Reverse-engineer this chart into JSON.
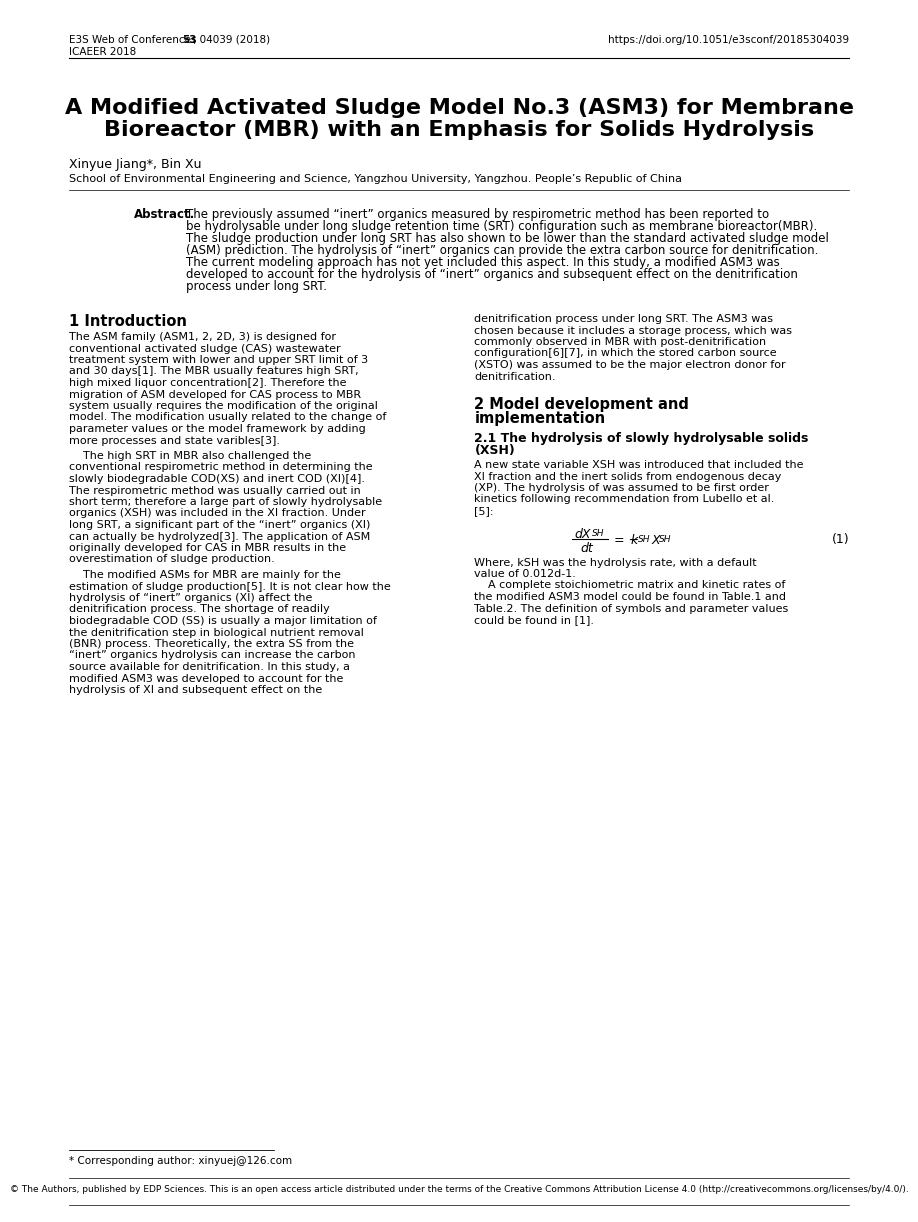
{
  "header_left_line1": "E3S Web of Conferences ",
  "header_left_bold": "53",
  "header_left_line1_rest": ", 04039 (2018)",
  "header_left_line2": "ICAEER 2018",
  "header_right": "https://doi.org/10.1051/e3sconf/20185304039",
  "title_line1": "A Modified Activated Sludge Model No.3 (ASM3) for Membrane",
  "title_line2": "Bioreactor (MBR) with an Emphasis for Solids Hydrolysis",
  "authors": "Xinyue Jiang*, Bin Xu",
  "affiliation": "School of Environmental Engineering and Science, Yangzhou University, Yangzhou. People’s Republic of China",
  "abstract_label": "Abstract.",
  "abstract_lines": [
    "The previously assumed “inert” organics measured by respirometric method has been reported to",
    "be hydrolysable under long sludge retention time (SRT) configuration such as membrane bioreactor(MBR).",
    "The sludge production under long SRT has also shown to be lower than the standard activated sludge model",
    "(ASM) prediction. The hydrolysis of “inert” organics can provide the extra carbon source for denitrification.",
    "The current modeling approach has not yet included this aspect. In this study, a modified ASM3 was",
    "developed to account for the hydrolysis of “inert” organics and subsequent effect on the denitrification",
    "process under long SRT."
  ],
  "col1_intro_title": "1 Introduction",
  "col1_p1_lines": [
    "The ASM family (ASM1, 2, 2D, 3) is designed for",
    "conventional activated sludge (CAS) wastewater",
    "treatment system with lower and upper SRT limit of 3",
    "and 30 days[1]. The MBR usually features high SRT,",
    "high mixed liquor concentration[2]. Therefore the",
    "migration of ASM developed for CAS process to MBR",
    "system usually requires the modification of the original",
    "model. The modification usually related to the change of",
    "parameter values or the model framework by adding",
    "more processes and state varibles[3]."
  ],
  "col1_p2_lines": [
    "    The high SRT in MBR also challenged the",
    "conventional respirometric method in determining the",
    "slowly biodegradable COD(XS) and inert COD (XI)[4].",
    "The respirometric method was usually carried out in",
    "short term; therefore a large part of slowly hydrolysable",
    "organics (XSH) was included in the XI fraction. Under",
    "long SRT, a significant part of the “inert” organics (XI)",
    "can actually be hydrolyzed[3]. The application of ASM",
    "originally developed for CAS in MBR results in the",
    "overestimation of sludge production."
  ],
  "col1_p3_lines": [
    "    The modified ASMs for MBR are mainly for the",
    "estimation of sludge production[5]. It is not clear how the",
    "hydrolysis of “inert” organics (XI) affect the",
    "denitrification process. The shortage of readily",
    "biodegradable COD (SS) is usually a major limitation of",
    "the denitrification step in biological nutrient removal",
    "(BNR) process. Theoretically, the extra SS from the",
    "“inert” organics hydrolysis can increase the carbon",
    "source available for denitrification. In this study, a",
    "modified ASM3 was developed to account for the",
    "hydrolysis of XI and subsequent effect on the"
  ],
  "col2_cont_lines": [
    "denitrification process under long SRT. The ASM3 was",
    "chosen because it includes a storage process, which was",
    "commonly observed in MBR with post-denitrification",
    "configuration[6][7], in which the stored carbon source",
    "(XSTO) was assumed to be the major electron donor for",
    "denitrification."
  ],
  "col2_sec2_title_line1": "2 Model development and",
  "col2_sec2_title_line2": "implementation",
  "col2_sub21_title_line1": "2.1 The hydrolysis of slowly hydrolysable solids",
  "col2_sub21_title_line2": "(XSH)",
  "col2_sub21_lines": [
    "A new state variable XSH was introduced that included the",
    "XI fraction and the inert solids from endogenous decay",
    "(XP). The hydrolysis of was assumed to be first order",
    "kinetics following recommendation from Lubello et al.",
    "[5]:"
  ],
  "col2_after_eq_lines": [
    "Where, kSH was the hydrolysis rate, with a default",
    "value of 0.012d-1.",
    "    A complete stoichiometric matrix and kinetic rates of",
    "the modified ASM3 model could be found in Table.1 and",
    "Table.2. The definition of symbols and parameter values",
    "could be found in [1]."
  ],
  "footnote": "* Corresponding author: xinyuej@126.com",
  "footer_text": "© The Authors, published by EDP Sciences. This is an open access article distributed under the terms of the Creative Commons Attribution License 4.0 (http://creativecommons.org/licenses/by/4.0/).",
  "background_color": "#ffffff"
}
